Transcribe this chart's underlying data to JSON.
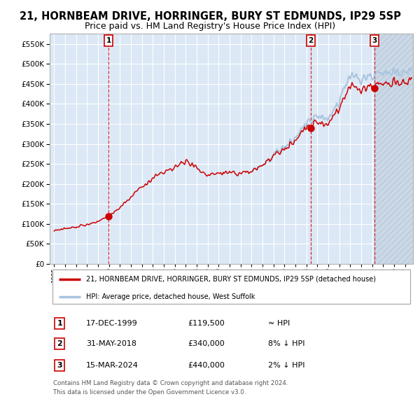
{
  "title": "21, HORNBEAM DRIVE, HORRINGER, BURY ST EDMUNDS, IP29 5SP",
  "subtitle": "Price paid vs. HM Land Registry's House Price Index (HPI)",
  "title_fontsize": 10.5,
  "subtitle_fontsize": 9,
  "ylim": [
    0,
    575000
  ],
  "xlim_start": 1994.58,
  "xlim_end": 2027.75,
  "sale1_date": 1999.96,
  "sale1_price": 119500,
  "sale2_date": 2018.41,
  "sale2_price": 340000,
  "sale3_date": 2024.2,
  "sale3_price": 440000,
  "hpi_color": "#a8c4de",
  "price_color": "#cc0000",
  "bg_color": "#dce8f5",
  "hatch_bg_color": "#ccd8e8",
  "grid_color": "#ffffff",
  "vline_color": "#cc0000",
  "legend_line1": "21, HORNBEAM DRIVE, HORRINGER, BURY ST EDMUNDS, IP29 5SP (detached house)",
  "legend_line2": "HPI: Average price, detached house, West Suffolk",
  "table_rows": [
    [
      "1",
      "17-DEC-1999",
      "£119,500",
      "≈ HPI"
    ],
    [
      "2",
      "31-MAY-2018",
      "£340,000",
      "8% ↓ HPI"
    ],
    [
      "3",
      "15-MAR-2024",
      "£440,000",
      "2% ↓ HPI"
    ]
  ],
  "footer": "Contains HM Land Registry data © Crown copyright and database right 2024.\nThis data is licensed under the Open Government Licence v3.0."
}
